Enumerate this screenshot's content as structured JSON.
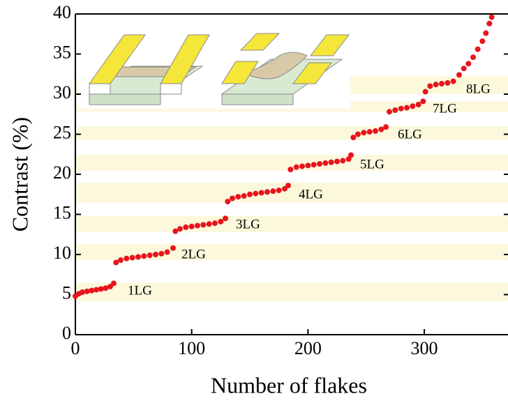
{
  "chart_data": {
    "type": "scatter",
    "x_label": "Number of flakes",
    "y_label": "Contrast (%)",
    "xlim": [
      0,
      372
    ],
    "ylim": [
      0,
      40
    ],
    "xticks": [
      0,
      100,
      200,
      300
    ],
    "yticks": [
      0,
      5,
      10,
      15,
      20,
      25,
      30,
      35,
      40
    ],
    "bands": [
      [
        4.2,
        6.5
      ],
      [
        9.3,
        11.3
      ],
      [
        12.8,
        14.8
      ],
      [
        16.5,
        19
      ],
      [
        20.4,
        22.4
      ],
      [
        24.3,
        26
      ],
      [
        27.8,
        29.1
      ],
      [
        30,
        32.2
      ]
    ],
    "band_color": "#fbf8dc",
    "annotations": [
      "1LG",
      "2LG",
      "3LG",
      "4LG",
      "5LG",
      "6LG",
      "7LG",
      "8LG"
    ],
    "series": [
      {
        "color": "#e8141c",
        "x": [
          0,
          3,
          6,
          10,
          14,
          18,
          22,
          26,
          30,
          33,
          35,
          39,
          44,
          49,
          54,
          59,
          64,
          69,
          74,
          79,
          84,
          86,
          90,
          95,
          100,
          105,
          110,
          115,
          120,
          125,
          129,
          131,
          135,
          140,
          145,
          150,
          155,
          160,
          165,
          170,
          175,
          180,
          183,
          185,
          190,
          195,
          200,
          205,
          210,
          215,
          220,
          225,
          230,
          235,
          237,
          239,
          243,
          248,
          253,
          258,
          263,
          267,
          270,
          275,
          280,
          285,
          290,
          295,
          299,
          301,
          305,
          310,
          315,
          320,
          325,
          330,
          334,
          338,
          342,
          346,
          350,
          353,
          356,
          358
        ],
        "values": [
          4.8,
          5.1,
          5.3,
          5.4,
          5.5,
          5.6,
          5.7,
          5.8,
          6.0,
          6.4,
          9.0,
          9.3,
          9.5,
          9.6,
          9.7,
          9.8,
          9.9,
          10.0,
          10.1,
          10.3,
          10.8,
          12.9,
          13.2,
          13.4,
          13.5,
          13.6,
          13.7,
          13.8,
          13.9,
          14.1,
          14.5,
          16.6,
          17.0,
          17.2,
          17.3,
          17.5,
          17.6,
          17.7,
          17.8,
          17.9,
          18.0,
          18.2,
          18.6,
          20.6,
          20.9,
          21.0,
          21.1,
          21.2,
          21.3,
          21.4,
          21.5,
          21.6,
          21.7,
          21.9,
          22.4,
          24.6,
          25.0,
          25.2,
          25.3,
          25.4,
          25.6,
          25.9,
          27.8,
          28.0,
          28.2,
          28.3,
          28.5,
          28.7,
          29.1,
          30.3,
          31.0,
          31.2,
          31.3,
          31.4,
          31.6,
          32.4,
          33.2,
          33.8,
          34.6,
          35.6,
          36.6,
          37.6,
          38.8,
          39.6
        ]
      }
    ]
  }
}
